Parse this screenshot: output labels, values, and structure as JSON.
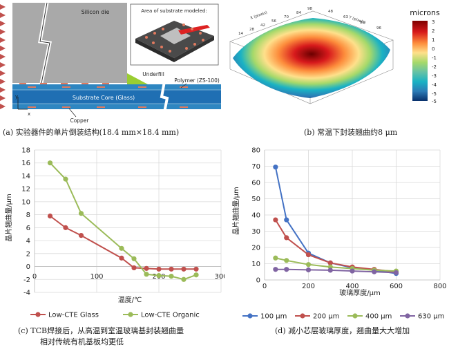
{
  "panel_a": {
    "label_silicon": "Silicon die",
    "label_inset": "Area of substrate modeled:",
    "label_underfill": "Underfill",
    "label_polymer": "Polymer (ZS-100)",
    "label_core": "Substrate Core (Glass)",
    "label_copper": "Copper",
    "axis_y": "y",
    "axis_x": "x",
    "caption": "(a) 实验器件的单片倒装结构(18.4 mm×18.4 mm)",
    "colors": {
      "die": "#a9a9a9",
      "core": "#1f6fb3",
      "underfill": "#9acd32",
      "copper": "#e07a5f",
      "triangles": "#c0504d"
    }
  },
  "panel_b": {
    "colorbar_title": "microns",
    "colorbar_ticks": [
      "3",
      "2",
      "1",
      "0",
      "-1",
      "-2",
      "-3",
      "-4",
      "-5",
      "-5"
    ],
    "axis_x": "X (pixels)",
    "axis_y": "Y (pixels)",
    "x_ticks": [
      "14",
      "28",
      "42",
      "56",
      "70",
      "84",
      "98"
    ],
    "y_ticks": [
      "48",
      "63",
      "80",
      "96"
    ],
    "caption": "(b) 常温下封装翘曲约8 μm"
  },
  "panel_c": {
    "caption_line1": "(c) TCB焊接后，从高温到室温玻璃基封装翘曲量",
    "caption_line2": "相对传统有机基板均更低",
    "chart_data": {
      "type": "line",
      "xlabel": "温度/℃",
      "ylabel": "晶片翘曲量/μm",
      "xlim": [
        0,
        300
      ],
      "ylim": [
        -4,
        18
      ],
      "x_ticks": [
        "0",
        "100",
        "200",
        "300"
      ],
      "y_ticks": [
        "-4",
        "-2",
        "0",
        "2",
        "4",
        "6",
        "8",
        "10",
        "12",
        "14",
        "16",
        "18"
      ],
      "grid": true,
      "legend": "bottom",
      "series": [
        {
          "name": "Low-CTE Glass",
          "color": "#c0504d",
          "x": [
            25,
            50,
            75,
            140,
            160,
            180,
            200,
            220,
            240,
            260
          ],
          "y": [
            7.8,
            6.0,
            4.8,
            1.3,
            -0.2,
            -0.3,
            -0.4,
            -0.4,
            -0.4,
            -0.4
          ]
        },
        {
          "name": "Low-CTE Organic",
          "color": "#9bbb59",
          "x": [
            25,
            50,
            75,
            140,
            160,
            180,
            200,
            220,
            240,
            260
          ],
          "y": [
            16.0,
            13.5,
            8.2,
            2.8,
            1.2,
            -1.2,
            -1.4,
            -1.5,
            -2.0,
            -1.3
          ]
        }
      ]
    }
  },
  "panel_d": {
    "caption": "(d) 减小芯层玻璃厚度，翘曲量大大增加",
    "chart_data": {
      "type": "line",
      "xlabel": "玻璃厚度/μm",
      "ylabel": "晶片翘曲量/μm",
      "xlim": [
        0,
        800
      ],
      "ylim": [
        0,
        80
      ],
      "x_ticks": [
        "0",
        "200",
        "400",
        "600",
        "800"
      ],
      "y_ticks": [
        "0",
        "10",
        "20",
        "30",
        "40",
        "50",
        "60",
        "70",
        "80"
      ],
      "grid": true,
      "legend": "bottom",
      "series": [
        {
          "name": "100 μm",
          "color": "#4472c4",
          "x": [
            50,
            100,
            200,
            300,
            400,
            500,
            600
          ],
          "y": [
            69.5,
            37.0,
            16.5,
            10.5,
            7.5,
            6.0,
            4.0
          ]
        },
        {
          "name": "200 μm",
          "color": "#c0504d",
          "x": [
            50,
            100,
            200,
            300,
            400,
            500,
            600
          ],
          "y": [
            37.0,
            26.0,
            15.5,
            10.5,
            8.0,
            6.5,
            5.0
          ]
        },
        {
          "name": "400 μm",
          "color": "#9bbb59",
          "x": [
            50,
            100,
            200,
            300,
            400,
            500,
            600
          ],
          "y": [
            13.5,
            12.0,
            9.5,
            8.0,
            7.0,
            6.0,
            5.5
          ]
        },
        {
          "name": "630 μm",
          "color": "#8064a2",
          "x": [
            50,
            100,
            200,
            300,
            400,
            500,
            600
          ],
          "y": [
            6.5,
            6.5,
            6.2,
            6.0,
            5.5,
            5.0,
            4.5
          ]
        }
      ]
    }
  }
}
